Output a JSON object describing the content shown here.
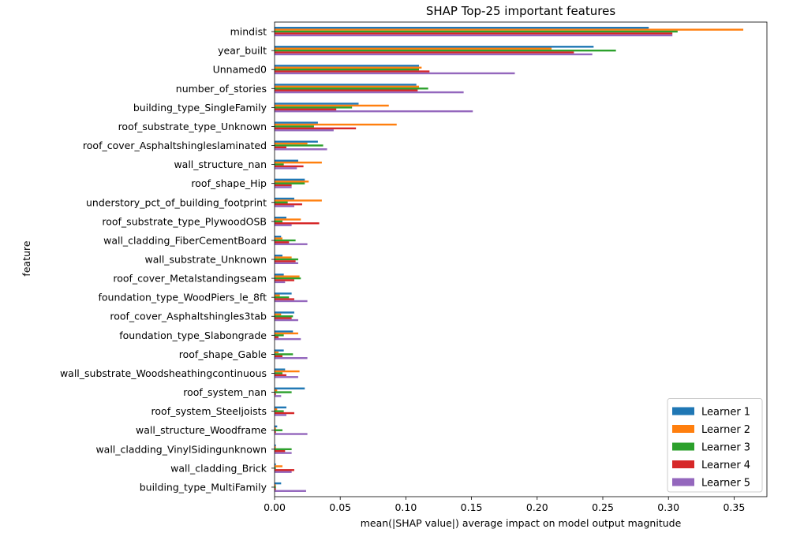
{
  "chart_data": {
    "type": "bar",
    "orientation": "horizontal",
    "title": "SHAP Top-25 important features",
    "xlabel": "mean(|SHAP value|) average impact on model output magnitude",
    "ylabel": "feature",
    "xlim": [
      0,
      0.375
    ],
    "xticks": [
      0.0,
      0.05,
      0.1,
      0.15,
      0.2,
      0.25,
      0.3,
      0.35
    ],
    "xtick_labels": [
      "0.00",
      "0.05",
      "0.10",
      "0.15",
      "0.20",
      "0.25",
      "0.30",
      "0.35"
    ],
    "grid": false,
    "legend_position": "lower right",
    "categories": [
      "mindist",
      "year_built",
      "Unnamed0",
      "number_of_stories",
      "building_type_SingleFamily",
      "roof_substrate_type_Unknown",
      "roof_cover_Asphaltshingleslaminated",
      "wall_structure_nan",
      "roof_shape_Hip",
      "understory_pct_of_building_footprint",
      "roof_substrate_type_PlywoodOSB",
      "wall_cladding_FiberCementBoard",
      "wall_substrate_Unknown",
      "roof_cover_Metalstandingseam",
      "foundation_type_WoodPiers_le_8ft",
      "roof_cover_Asphaltshingles3tab",
      "foundation_type_Slabongrade",
      "roof_shape_Gable",
      "wall_substrate_Woodsheathingcontinuous",
      "roof_system_nan",
      "roof_system_Steeljoists",
      "wall_structure_Woodframe",
      "wall_cladding_VinylSidingunknown",
      "wall_cladding_Brick",
      "building_type_MultiFamily"
    ],
    "series": [
      {
        "name": "Learner 1",
        "color": "#1f77b4",
        "values": [
          0.285,
          0.243,
          0.11,
          0.108,
          0.064,
          0.033,
          0.033,
          0.018,
          0.023,
          0.015,
          0.009,
          0.005,
          0.006,
          0.007,
          0.013,
          0.015,
          0.014,
          0.007,
          0.008,
          0.023,
          0.009,
          0.002,
          0.001,
          0.001,
          0.005
        ]
      },
      {
        "name": "Learner 2",
        "color": "#ff7f0e",
        "values": [
          0.357,
          0.211,
          0.112,
          0.11,
          0.087,
          0.093,
          0.025,
          0.036,
          0.026,
          0.036,
          0.02,
          0.006,
          0.013,
          0.019,
          0.004,
          0.005,
          0.018,
          0.003,
          0.019,
          0.002,
          0.002,
          0.001,
          0.001,
          0.006,
          0.001
        ]
      },
      {
        "name": "Learner 3",
        "color": "#2ca02c",
        "values": [
          0.307,
          0.26,
          0.11,
          0.117,
          0.059,
          0.03,
          0.037,
          0.007,
          0.023,
          0.01,
          0.006,
          0.016,
          0.018,
          0.02,
          0.011,
          0.014,
          0.007,
          0.014,
          0.006,
          0.013,
          0.007,
          0.006,
          0.013,
          0.001,
          0.001
        ]
      },
      {
        "name": "Learner 4",
        "color": "#d62728",
        "values": [
          0.303,
          0.228,
          0.118,
          0.109,
          0.047,
          0.062,
          0.009,
          0.022,
          0.013,
          0.021,
          0.034,
          0.011,
          0.016,
          0.015,
          0.015,
          0.013,
          0.003,
          0.006,
          0.009,
          0.001,
          0.015,
          0.001,
          0.008,
          0.015,
          0.001
        ]
      },
      {
        "name": "Learner 5",
        "color": "#9467bd",
        "values": [
          0.303,
          0.242,
          0.183,
          0.144,
          0.151,
          0.045,
          0.04,
          0.017,
          0.013,
          0.015,
          0.013,
          0.025,
          0.018,
          0.008,
          0.025,
          0.018,
          0.02,
          0.025,
          0.018,
          0.005,
          0.009,
          0.025,
          0.013,
          0.013,
          0.024
        ]
      }
    ]
  }
}
